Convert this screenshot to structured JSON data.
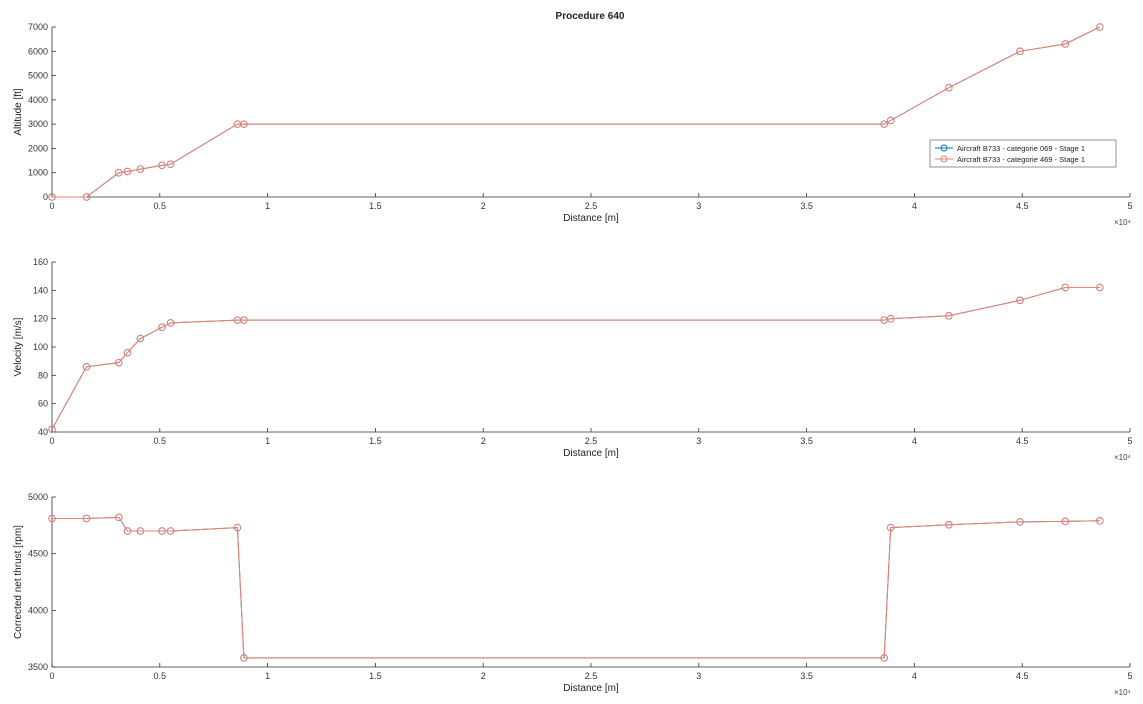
{
  "figure": {
    "title": "Procedure 640"
  },
  "chart_data": [
    {
      "type": "line",
      "title": "Procedure 640",
      "xlabel": "Distance [m]",
      "ylabel": "Altitude [ft]",
      "xlim": [
        0,
        50000
      ],
      "ylim": [
        0,
        7000
      ],
      "x_ticks": [
        "0",
        "0.5",
        "1",
        "1.5",
        "2",
        "2.5",
        "3",
        "3.5",
        "4",
        "4.5",
        "5"
      ],
      "x_tick_values": [
        0,
        5000,
        10000,
        15000,
        20000,
        25000,
        30000,
        35000,
        40000,
        45000,
        50000
      ],
      "x_multiplier": "×10⁴",
      "y_ticks": [
        "0",
        "1000",
        "2000",
        "3000",
        "4000",
        "5000",
        "6000",
        "7000"
      ],
      "y_tick_values": [
        0,
        1000,
        2000,
        3000,
        4000,
        5000,
        6000,
        7000
      ],
      "grid": false,
      "legend_position": "right",
      "legend": [
        "Aircraft B733 - categorie 069 - Stage 1",
        "Aircraft B733 - categorie 469 - Stage 1"
      ],
      "series": [
        {
          "name": "Aircraft B733 - categorie 069 - Stage 1",
          "color": "#0072bd",
          "x": [
            0,
            1600,
            3100,
            3500,
            4100,
            5100,
            5500,
            8600,
            8900,
            38600,
            38900,
            41600,
            44900,
            47000,
            48600
          ],
          "y": [
            0,
            0,
            1000,
            1050,
            1150,
            1300,
            1350,
            3000,
            3000,
            3000,
            3150,
            4500,
            6000,
            6300,
            7000
          ]
        },
        {
          "name": "Aircraft B733 - categorie 469 - Stage 1",
          "color": "#f0826e",
          "x": [
            0,
            1600,
            3100,
            3500,
            4100,
            5100,
            5500,
            8600,
            8900,
            38600,
            38900,
            41600,
            44900,
            47000,
            48600
          ],
          "y": [
            0,
            0,
            1000,
            1050,
            1150,
            1300,
            1350,
            3000,
            3000,
            3000,
            3150,
            4500,
            6000,
            6300,
            7000
          ]
        }
      ]
    },
    {
      "type": "line",
      "title": "",
      "xlabel": "Distance [m]",
      "ylabel": "Velocity [m/s]",
      "xlim": [
        0,
        50000
      ],
      "ylim": [
        40,
        160
      ],
      "x_ticks": [
        "0",
        "0.5",
        "1",
        "1.5",
        "2",
        "2.5",
        "3",
        "3.5",
        "4",
        "4.5",
        "5"
      ],
      "x_tick_values": [
        0,
        5000,
        10000,
        15000,
        20000,
        25000,
        30000,
        35000,
        40000,
        45000,
        50000
      ],
      "x_multiplier": "×10⁴",
      "y_ticks": [
        "40",
        "60",
        "80",
        "100",
        "120",
        "140",
        "160"
      ],
      "y_tick_values": [
        40,
        60,
        80,
        100,
        120,
        140,
        160
      ],
      "grid": false,
      "series": [
        {
          "name": "Aircraft B733 - categorie 069 - Stage 1",
          "color": "#0072bd",
          "x": [
            0,
            1600,
            3100,
            3500,
            4100,
            5100,
            5500,
            8600,
            8900,
            38600,
            38900,
            41600,
            44900,
            47000,
            48600
          ],
          "y": [
            42,
            86,
            89,
            96,
            106,
            114,
            117,
            119,
            119,
            119,
            120,
            122,
            133,
            142,
            142
          ]
        },
        {
          "name": "Aircraft B733 - categorie 469 - Stage 1",
          "color": "#f0826e",
          "x": [
            0,
            1600,
            3100,
            3500,
            4100,
            5100,
            5500,
            8600,
            8900,
            38600,
            38900,
            41600,
            44900,
            47000,
            48600
          ],
          "y": [
            42,
            86,
            89,
            96,
            106,
            114,
            117,
            119,
            119,
            119,
            120,
            122,
            133,
            142,
            142
          ]
        }
      ]
    },
    {
      "type": "line",
      "title": "",
      "xlabel": "Distance [m]",
      "ylabel": "Corrected net thrust [rpm]",
      "xlim": [
        0,
        50000
      ],
      "ylim": [
        3500,
        5000
      ],
      "x_ticks": [
        "0",
        "0.5",
        "1",
        "1.5",
        "2",
        "2.5",
        "3",
        "3.5",
        "4",
        "4.5",
        "5"
      ],
      "x_tick_values": [
        0,
        5000,
        10000,
        15000,
        20000,
        25000,
        30000,
        35000,
        40000,
        45000,
        50000
      ],
      "x_multiplier": "×10⁴",
      "y_ticks": [
        "3500",
        "4000",
        "4500",
        "5000"
      ],
      "y_tick_values": [
        3500,
        4000,
        4500,
        5000
      ],
      "grid": false,
      "series": [
        {
          "name": "Aircraft B733 - categorie 069 - Stage 1",
          "color": "#0072bd",
          "x": [
            0,
            1600,
            3100,
            3500,
            4100,
            5100,
            5500,
            8600,
            8900,
            38600,
            38900,
            41600,
            44900,
            47000,
            48600
          ],
          "y": [
            4810,
            4810,
            4820,
            4700,
            4700,
            4700,
            4700,
            4730,
            3580,
            3580,
            4730,
            4755,
            4780,
            4785,
            4790
          ]
        },
        {
          "name": "Aircraft B733 - categorie 469 - Stage 1",
          "color": "#f0826e",
          "x": [
            0,
            1600,
            3100,
            3500,
            4100,
            5100,
            5500,
            8600,
            8900,
            38600,
            38900,
            41600,
            44900,
            47000,
            48600
          ],
          "y": [
            4810,
            4810,
            4820,
            4700,
            4700,
            4700,
            4700,
            4730,
            3580,
            3580,
            4730,
            4755,
            4780,
            4785,
            4790
          ]
        }
      ]
    }
  ]
}
